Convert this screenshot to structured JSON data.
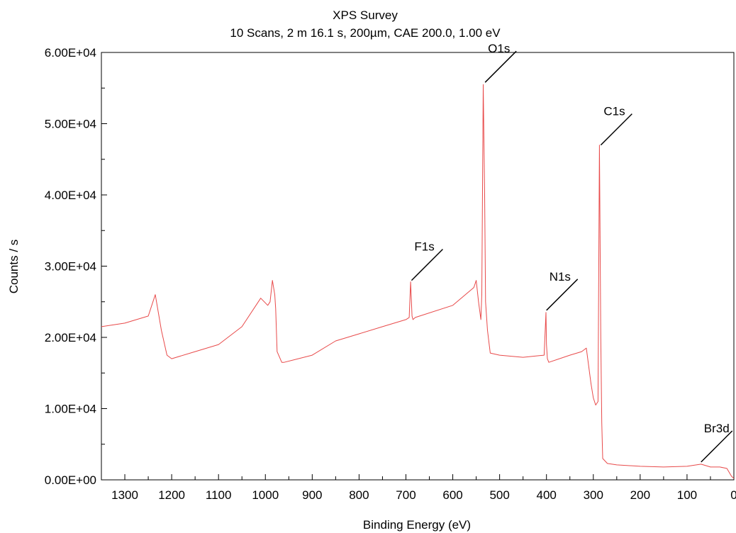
{
  "chart_data": {
    "type": "line",
    "title": "XPS Survey",
    "subtitle": "10 Scans,  2 m 16.1 s,  200µm,  CAE 200.0,  1.00 eV",
    "xlabel": "Binding Energy (eV)",
    "ylabel": "Counts / s",
    "xlim": [
      1350,
      0
    ],
    "ylim": [
      0,
      60000
    ],
    "x_reversed": true,
    "grid": false,
    "x_ticks": [
      1300,
      1200,
      1100,
      1000,
      900,
      800,
      700,
      600,
      500,
      400,
      300,
      200,
      100,
      0
    ],
    "y_ticks": [
      "0.00E+00",
      "1.00E+04",
      "2.00E+04",
      "3.00E+04",
      "4.00E+04",
      "5.00E+04",
      "6.00E+04"
    ],
    "y_tick_values": [
      0,
      10000,
      20000,
      30000,
      40000,
      50000,
      60000
    ],
    "colors": {
      "spectrum": "#e84a4a",
      "background": "#33cc33",
      "axis": "#000000"
    },
    "series": [
      {
        "x": [
          1350,
          1300,
          1250,
          1235,
          1222,
          1210,
          1200,
          1150,
          1100,
          1050,
          1010,
          995,
          990,
          985,
          980,
          978,
          975,
          965,
          960,
          900,
          850,
          800,
          750,
          700,
          693,
          690,
          687,
          685,
          680,
          600,
          555,
          550,
          545,
          540,
          538,
          535,
          532,
          530,
          526,
          520,
          500,
          450,
          405,
          401,
          400,
          398,
          395,
          350,
          325,
          315,
          310,
          305,
          300,
          295,
          290,
          287,
          284,
          282,
          280,
          270,
          250,
          200,
          150,
          100,
          70,
          50,
          30,
          15,
          5,
          0
        ],
        "y": [
          21500,
          22000,
          23000,
          26000,
          21000,
          17500,
          17000,
          18000,
          19000,
          21500,
          25500,
          24500,
          25000,
          28000,
          26000,
          24000,
          18000,
          16500,
          16500,
          17500,
          19500,
          20500,
          21500,
          22500,
          22800,
          27800,
          23000,
          22500,
          22800,
          24500,
          27000,
          28000,
          25000,
          22500,
          26000,
          55500,
          40000,
          25000,
          21000,
          17800,
          17500,
          17200,
          17500,
          23500,
          19000,
          17000,
          16500,
          17500,
          18000,
          18500,
          16000,
          13500,
          11500,
          10500,
          11000,
          47000,
          20000,
          8000,
          3000,
          2300,
          2100,
          1900,
          1800,
          1900,
          2200,
          1800,
          1800,
          1600,
          500,
          200
        ]
      }
    ],
    "annotations": [
      {
        "label": "O1s",
        "x": 531,
        "y": 55800
      },
      {
        "label": "C1s",
        "x": 284,
        "y": 47000
      },
      {
        "label": "F1s",
        "x": 688,
        "y": 28000
      },
      {
        "label": "N1s",
        "x": 400,
        "y": 23800
      },
      {
        "label": "Br3d",
        "x": 70,
        "y": 2500
      }
    ]
  }
}
